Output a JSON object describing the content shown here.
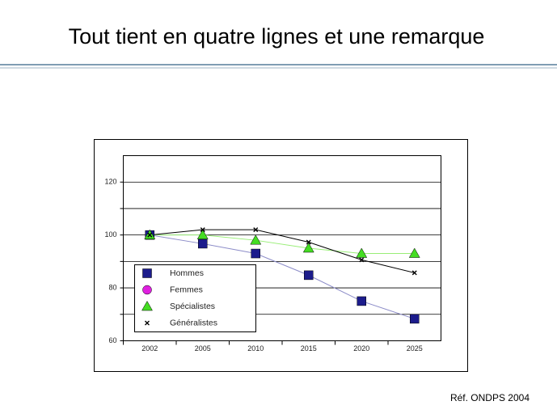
{
  "slide": {
    "title": "Tout tient en quatre lignes et une remarque",
    "footer": "Réf. ONDPS 2004"
  },
  "chart_data": {
    "type": "line",
    "categories": [
      "2002",
      "2005",
      "2010",
      "2015",
      "2020",
      "2025"
    ],
    "ylim": [
      60,
      130
    ],
    "yticks": [
      60,
      80,
      100,
      120
    ],
    "yminor_ticks": [
      70,
      90,
      110
    ],
    "grid": true,
    "legend": "bottom-left",
    "series": [
      {
        "name": "Hommes",
        "color": "#1c1c8c",
        "line_color": "#8c8cc8",
        "marker": "square",
        "values": [
          100,
          96.7,
          93,
          84.8,
          75,
          68.3
        ]
      },
      {
        "name": "Femmes",
        "color": "#e020e0",
        "line_color": "#e020e0",
        "marker": "circle",
        "values": [
          null,
          null,
          null,
          null,
          null,
          null
        ]
      },
      {
        "name": "Spécialistes",
        "color": "#44dd22",
        "line_color": "#99ee77",
        "marker": "triangle",
        "values": [
          100,
          100,
          98,
          95,
          93,
          93
        ]
      },
      {
        "name": "Généralistes",
        "color": "#000000",
        "line_color": "#000000",
        "marker": "cross",
        "values": [
          100,
          102,
          102,
          97.3,
          90.6,
          85.7
        ]
      }
    ]
  }
}
